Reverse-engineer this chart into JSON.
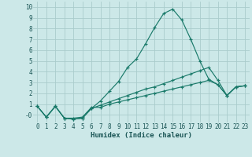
{
  "title": "",
  "xlabel": "Humidex (Indice chaleur)",
  "bg_color": "#cce8e8",
  "grid_color": "#aacccc",
  "line_color": "#1a7a6a",
  "xlim": [
    -0.5,
    23.5
  ],
  "ylim": [
    -0.7,
    10.5
  ],
  "xticks": [
    0,
    1,
    2,
    3,
    4,
    5,
    6,
    7,
    8,
    9,
    10,
    11,
    12,
    13,
    14,
    15,
    16,
    17,
    18,
    19,
    20,
    21,
    22,
    23
  ],
  "yticks": [
    0,
    1,
    2,
    3,
    4,
    5,
    6,
    7,
    8,
    9,
    10
  ],
  "ytick_labels": [
    "-0",
    "1",
    "2",
    "3",
    "4",
    "5",
    "6",
    "7",
    "8",
    "9",
    "10"
  ],
  "series": [
    {
      "x": [
        0,
        1,
        2,
        3,
        4,
        5,
        6,
        7,
        8,
        9,
        10,
        11,
        12,
        13,
        14,
        15,
        16,
        17,
        18,
        19,
        20,
        21,
        22,
        23
      ],
      "y": [
        0.8,
        -0.2,
        0.8,
        -0.3,
        -0.3,
        -0.2,
        0.7,
        0.7,
        1.0,
        1.2,
        1.4,
        1.6,
        1.8,
        2.0,
        2.2,
        2.4,
        2.6,
        2.8,
        3.0,
        3.2,
        2.8,
        1.8,
        2.6,
        2.7
      ]
    },
    {
      "x": [
        0,
        1,
        2,
        3,
        4,
        5,
        6,
        7,
        8,
        9,
        10,
        11,
        12,
        13,
        14,
        15,
        16,
        17,
        18,
        19,
        20,
        21,
        22,
        23
      ],
      "y": [
        0.8,
        -0.2,
        0.8,
        -0.3,
        -0.4,
        -0.3,
        0.6,
        0.9,
        1.2,
        1.5,
        1.8,
        2.1,
        2.4,
        2.6,
        2.9,
        3.2,
        3.5,
        3.8,
        4.1,
        4.4,
        3.2,
        1.8,
        2.6,
        2.7
      ]
    },
    {
      "x": [
        0,
        1,
        2,
        3,
        4,
        5,
        6,
        7,
        8,
        9,
        10,
        11,
        12,
        13,
        14,
        15,
        16,
        17,
        18,
        19,
        20,
        21,
        22,
        23
      ],
      "y": [
        0.8,
        -0.2,
        0.8,
        -0.3,
        -0.4,
        -0.3,
        0.6,
        1.3,
        2.2,
        3.1,
        4.4,
        5.2,
        6.6,
        8.1,
        9.4,
        9.8,
        8.8,
        7.0,
        5.0,
        3.3,
        2.8,
        1.8,
        2.6,
        2.7
      ]
    }
  ]
}
